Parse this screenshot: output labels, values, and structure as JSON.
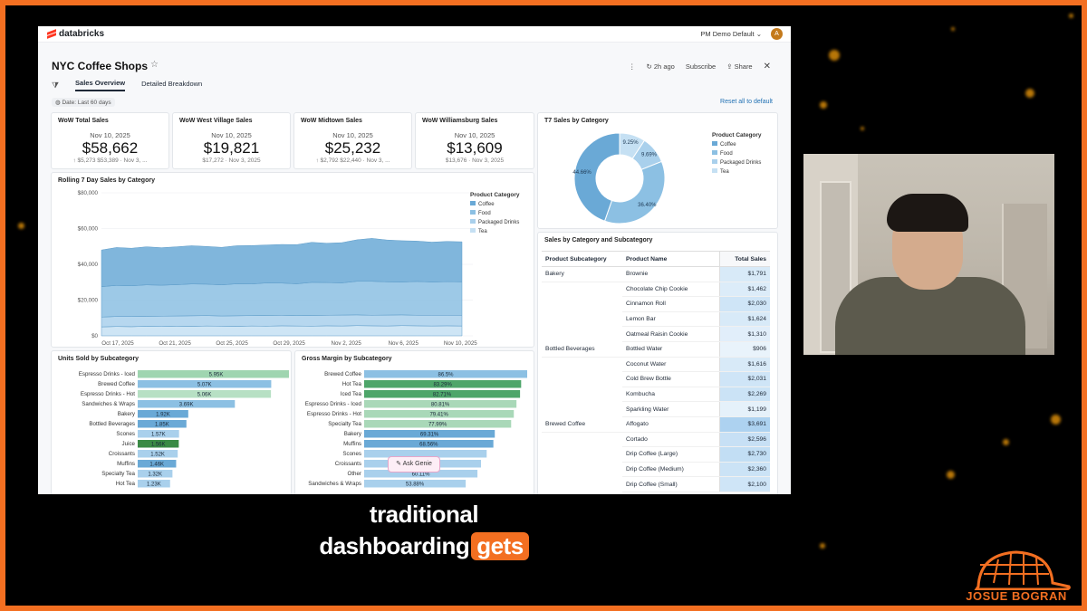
{
  "app": {
    "logo_text": "databricks",
    "workspace": "PM Demo Default",
    "avatar_initial": "A"
  },
  "dashboard": {
    "title": "NYC Coffee Shops",
    "refresh": "2h ago",
    "subscribe": "Subscribe",
    "share": "Share",
    "tabs": [
      {
        "label": "Sales Overview",
        "active": true
      },
      {
        "label": "Detailed Breakdown",
        "active": false
      }
    ],
    "date_filter": "Date: Last 60 days",
    "reset": "Reset all to default"
  },
  "kpis": [
    {
      "title": "WoW Total Sales",
      "date": "Nov 10, 2025",
      "value": "$58,662",
      "sub": "$5,273 $53,389 · Nov 3, ..."
    },
    {
      "title": "WoW West Village Sales",
      "date": "Nov 10, 2025",
      "value": "$19,821",
      "sub": "$17,272 · Nov 3, 2025"
    },
    {
      "title": "WoW Midtown Sales",
      "date": "Nov 10, 2025",
      "value": "$25,232",
      "sub": "$2,792 $22,440 · Nov 3, ..."
    },
    {
      "title": "WoW Williamsburg Sales",
      "date": "Nov 10, 2025",
      "value": "$13,609",
      "sub": "$13,676 · Nov 3, 2025"
    }
  ],
  "legend_title": "Product Category",
  "categories": [
    "Coffee",
    "Food",
    "Packaged Drinks",
    "Tea"
  ],
  "colors": {
    "c1": "#6aa9d6",
    "c2": "#8cc0e3",
    "c3": "#a9d0ec",
    "c4": "#c5e0f3",
    "green": "#3a9b5c",
    "lightgreen": "#a9d8b8",
    "accent": "#f36f21"
  },
  "chart_data": [
    {
      "type": "pie",
      "title": "T7 Sales by Category",
      "legend_title": "Product Category",
      "categories": [
        "Coffee",
        "Food",
        "Packaged Drinks",
        "Tea"
      ],
      "values": [
        44.66,
        36.4,
        9.69,
        9.25
      ],
      "labels": [
        "44.66%",
        "36.40%",
        "9.69%",
        "9.25%"
      ]
    },
    {
      "type": "area",
      "title": "Rolling 7 Day Sales by Category",
      "legend_title": "Product Category",
      "x_ticks": [
        "Oct 17, 2025",
        "Oct 21, 2025",
        "Oct 25, 2025",
        "Oct 29, 2025",
        "Nov 2, 2025",
        "Nov 6, 2025",
        "Nov 10, 2025"
      ],
      "y_ticks": [
        "$0",
        "$20,000",
        "$40,000",
        "$60,000",
        "$80,000"
      ],
      "ylim": [
        0,
        80000
      ],
      "series": [
        {
          "name": "Tea",
          "values": [
            5000,
            5200,
            5100,
            5300,
            5200,
            5400,
            5300,
            5500,
            5400,
            5300,
            5500,
            5400,
            5600,
            5500,
            5400,
            5600,
            5500,
            5700,
            5600,
            5500,
            5700,
            5600,
            5500,
            5600,
            5500
          ]
        },
        {
          "name": "Packaged Drinks",
          "values": [
            5500,
            5600,
            5700,
            5600,
            5800,
            5700,
            5900,
            5800,
            5700,
            5900,
            5800,
            6000,
            5900,
            5800,
            6000,
            5900,
            6100,
            6000,
            5900,
            6100,
            6000,
            5900,
            6000,
            5900,
            6000
          ]
        },
        {
          "name": "Food",
          "values": [
            17000,
            17400,
            17200,
            17600,
            17300,
            17500,
            17800,
            17600,
            17400,
            17900,
            17700,
            18200,
            18000,
            17800,
            18500,
            18300,
            18000,
            18800,
            19000,
            18600,
            18400,
            18900,
            18600,
            18800,
            18700
          ]
        },
        {
          "name": "Coffee",
          "values": [
            20500,
            21200,
            21000,
            21300,
            21000,
            21200,
            21400,
            21100,
            21000,
            21300,
            21500,
            21200,
            21600,
            21900,
            22400,
            22000,
            22500,
            23200,
            24000,
            23400,
            23100,
            22600,
            22300,
            22500,
            22400
          ]
        }
      ]
    },
    {
      "type": "bar",
      "title": "Units Sold by Subcategory",
      "categories": [
        "Espresso Drinks - Iced",
        "Brewed Coffee",
        "Espresso Drinks - Hot",
        "Sandwiches & Wraps",
        "Bakery",
        "Bottled Beverages",
        "Scones",
        "Juice",
        "Croissants",
        "Muffins",
        "Specialty Tea",
        "Hot Tea"
      ],
      "values": [
        5950,
        5070,
        5060,
        3690,
        1920,
        1850,
        1570,
        1560,
        1520,
        1460,
        1320,
        1230
      ],
      "labels": [
        "5.95K",
        "5.07K",
        "5.06K",
        "3.69K",
        "1.92K",
        "1.85K",
        "1.57K",
        "1.56K",
        "1.52K",
        "1.46K",
        "1.32K",
        "1.23K"
      ]
    },
    {
      "type": "bar",
      "title": "Gross Margin by Subcategory",
      "categories": [
        "Brewed Coffee",
        "Hot Tea",
        "Iced Tea",
        "Espresso Drinks - Iced",
        "Espresso Drinks - Hot",
        "Specialty Tea",
        "Bakery",
        "Muffins",
        "Scones",
        "Croissants",
        "Other",
        "Sandwiches & Wraps"
      ],
      "values": [
        86.5,
        83.29,
        82.71,
        80.81,
        79.41,
        77.99,
        69.31,
        68.56,
        65.0,
        62.0,
        60.11,
        53.88
      ],
      "labels": [
        "86.5%",
        "83.29%",
        "82.71%",
        "80.81%",
        "79.41%",
        "77.99%",
        "69.31%",
        "68.56%",
        "",
        "",
        "60.11%",
        "53.88%"
      ]
    }
  ],
  "table": {
    "title": "Sales by Category and Subcategory",
    "headers": [
      "Product Subcategory",
      "Product Name",
      "Total Sales"
    ],
    "rows": [
      [
        "Bakery",
        "Brownie",
        "$1,791"
      ],
      [
        "",
        "Chocolate Chip Cookie",
        "$1,462"
      ],
      [
        "",
        "Cinnamon Roll",
        "$2,030"
      ],
      [
        "",
        "Lemon Bar",
        "$1,624"
      ],
      [
        "",
        "Oatmeal Raisin Cookie",
        "$1,310"
      ],
      [
        "Bottled Beverages",
        "Bottled Water",
        "$906"
      ],
      [
        "",
        "Coconut Water",
        "$1,616"
      ],
      [
        "",
        "Cold Brew Bottle",
        "$2,031"
      ],
      [
        "",
        "Kombucha",
        "$2,269"
      ],
      [
        "",
        "Sparkling Water",
        "$1,199"
      ],
      [
        "Brewed Coffee",
        "Affogato",
        "$3,691"
      ],
      [
        "",
        "Cortado",
        "$2,596"
      ],
      [
        "",
        "Drip Coffee (Large)",
        "$2,730"
      ],
      [
        "",
        "Drip Coffee (Medium)",
        "$2,360"
      ],
      [
        "",
        "Drip Coffee (Small)",
        "$2,100"
      ]
    ],
    "values": [
      1791,
      1462,
      2030,
      1624,
      1310,
      906,
      1616,
      2031,
      2269,
      1199,
      3691,
      2596,
      2730,
      2360,
      2100
    ]
  },
  "genie_button": "Ask Genie",
  "caption": {
    "line1": "traditional",
    "line2": "dashboarding",
    "highlight": "gets"
  },
  "brand": {
    "name": "JOSUE BOGRAN"
  }
}
